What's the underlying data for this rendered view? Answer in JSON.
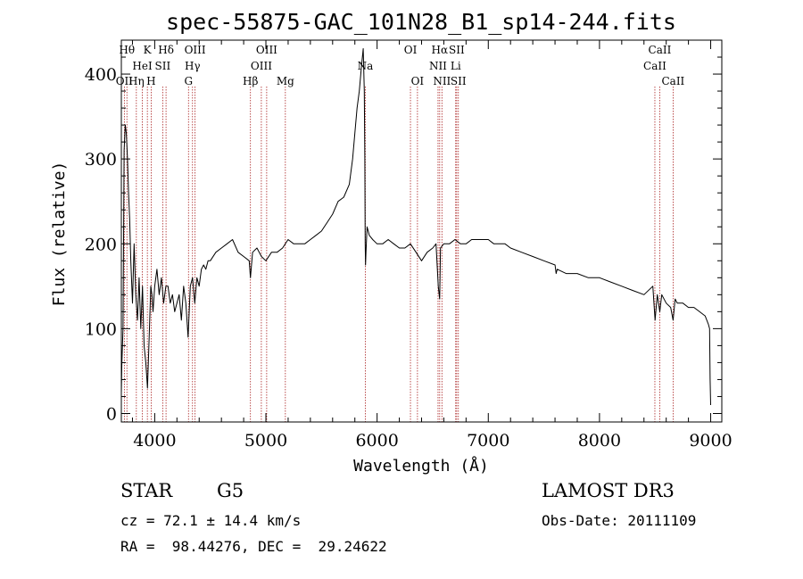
{
  "chart_data": {
    "type": "line",
    "title": "spec-55875-GAC_101N28_B1_sp14-244.fits",
    "xlabel": "Wavelength (Å)",
    "ylabel": "Flux (relative)",
    "xlim": [
      3700,
      9100
    ],
    "ylim": [
      -10,
      440
    ],
    "xticks": [
      4000,
      5000,
      6000,
      7000,
      8000,
      9000
    ],
    "yticks": [
      0,
      100,
      200,
      300,
      400
    ],
    "series": [
      {
        "name": "flux",
        "x": [
          3700,
          3705,
          3715,
          3725,
          3735,
          3745,
          3755,
          3765,
          3775,
          3785,
          3800,
          3815,
          3830,
          3845,
          3860,
          3875,
          3890,
          3905,
          3920,
          3935,
          3950,
          3965,
          3975,
          3985,
          4000,
          4020,
          4040,
          4060,
          4080,
          4100,
          4120,
          4140,
          4160,
          4180,
          4200,
          4220,
          4240,
          4260,
          4280,
          4300,
          4320,
          4340,
          4360,
          4380,
          4400,
          4420,
          4440,
          4460,
          4480,
          4500,
          4550,
          4600,
          4650,
          4700,
          4750,
          4800,
          4850,
          4861,
          4880,
          4920,
          4960,
          5000,
          5050,
          5100,
          5150,
          5200,
          5250,
          5300,
          5350,
          5400,
          5450,
          5500,
          5550,
          5600,
          5650,
          5700,
          5750,
          5780,
          5800,
          5820,
          5840,
          5860,
          5875,
          5885,
          5890,
          5893,
          5896,
          5900,
          5910,
          5920,
          5930,
          5960,
          6000,
          6050,
          6100,
          6150,
          6200,
          6250,
          6300,
          6350,
          6400,
          6450,
          6500,
          6530,
          6550,
          6563,
          6570,
          6600,
          6650,
          6700,
          6750,
          6800,
          6850,
          6900,
          6950,
          7000,
          7050,
          7100,
          7150,
          7200,
          7300,
          7400,
          7500,
          7600,
          7610,
          7620,
          7700,
          7800,
          7900,
          8000,
          8100,
          8200,
          8300,
          8400,
          8480,
          8500,
          8520,
          8542,
          8560,
          8600,
          8640,
          8662,
          8680,
          8700,
          8750,
          8800,
          8850,
          8900,
          8950,
          8980,
          8990,
          8995,
          9000
        ],
        "values": [
          25,
          60,
          100,
          310,
          340,
          330,
          300,
          260,
          230,
          180,
          130,
          200,
          140,
          110,
          160,
          100,
          150,
          80,
          60,
          30,
          90,
          150,
          140,
          120,
          150,
          170,
          140,
          160,
          130,
          150,
          150,
          130,
          140,
          120,
          130,
          140,
          110,
          150,
          130,
          90,
          150,
          160,
          130,
          160,
          150,
          170,
          175,
          170,
          180,
          180,
          190,
          195,
          200,
          205,
          190,
          185,
          180,
          160,
          190,
          195,
          185,
          180,
          190,
          190,
          195,
          205,
          200,
          200,
          200,
          205,
          210,
          215,
          225,
          235,
          250,
          255,
          270,
          300,
          330,
          360,
          380,
          410,
          430,
          380,
          300,
          200,
          175,
          190,
          220,
          215,
          210,
          205,
          200,
          200,
          205,
          200,
          195,
          195,
          200,
          190,
          180,
          190,
          195,
          200,
          150,
          135,
          195,
          200,
          200,
          205,
          200,
          200,
          205,
          205,
          205,
          205,
          200,
          200,
          200,
          195,
          190,
          185,
          180,
          175,
          165,
          170,
          165,
          165,
          160,
          160,
          155,
          150,
          145,
          140,
          150,
          110,
          140,
          120,
          140,
          130,
          125,
          110,
          135,
          130,
          130,
          125,
          125,
          120,
          115,
          105,
          100,
          40,
          10
        ]
      }
    ],
    "line_markers": [
      {
        "name": "OII",
        "wavelength": 3727,
        "row": 2
      },
      {
        "name": "Hθ",
        "wavelength": 3750,
        "row": 0
      },
      {
        "name": "Hη",
        "wavelength": 3835,
        "row": 2
      },
      {
        "name": "HeI",
        "wavelength": 3889,
        "row": 1
      },
      {
        "name": "K",
        "wavelength": 3934,
        "row": 0
      },
      {
        "name": "H",
        "wavelength": 3968,
        "row": 2
      },
      {
        "name": "SII",
        "wavelength": 4072,
        "row": 1
      },
      {
        "name": "Hδ",
        "wavelength": 4102,
        "row": 0
      },
      {
        "name": "G",
        "wavelength": 4304,
        "row": 2
      },
      {
        "name": "Hγ",
        "wavelength": 4340,
        "row": 1
      },
      {
        "name": "OIII",
        "wavelength": 4363,
        "row": 0
      },
      {
        "name": "Hβ",
        "wavelength": 4861,
        "row": 2
      },
      {
        "name": "OIII",
        "wavelength": 4959,
        "row": 1
      },
      {
        "name": "OIII",
        "wavelength": 5007,
        "row": 0
      },
      {
        "name": "Mg",
        "wavelength": 5175,
        "row": 2
      },
      {
        "name": "Na",
        "wavelength": 5894,
        "row": 1
      },
      {
        "name": "OI",
        "wavelength": 6300,
        "row": 0
      },
      {
        "name": "OI",
        "wavelength": 6363,
        "row": 2
      },
      {
        "name": "NII",
        "wavelength": 6548,
        "row": 1
      },
      {
        "name": "Hα",
        "wavelength": 6563,
        "row": 0
      },
      {
        "name": "NII",
        "wavelength": 6583,
        "row": 2
      },
      {
        "name": "Li",
        "wavelength": 6707,
        "row": 1
      },
      {
        "name": "SII",
        "wavelength": 6716,
        "row": 0
      },
      {
        "name": "SII",
        "wavelength": 6731,
        "row": 2
      },
      {
        "name": "CaII",
        "wavelength": 8498,
        "row": 1
      },
      {
        "name": "CaII",
        "wavelength": 8542,
        "row": 0
      },
      {
        "name": "CaII",
        "wavelength": 8662,
        "row": 2
      }
    ]
  },
  "info": {
    "class": "STAR",
    "subclass": "G5",
    "survey": "LAMOST DR3",
    "cz": "cz = 72.1 ± 14.4 km/s",
    "obs_date": "Obs-Date: 20111109",
    "radec": "RA =  98.44276, DEC =  29.24622"
  },
  "colors": {
    "spectrum": "#000000",
    "line_markers": "#aa2222",
    "axes": "#000000",
    "background": "#ffffff"
  }
}
